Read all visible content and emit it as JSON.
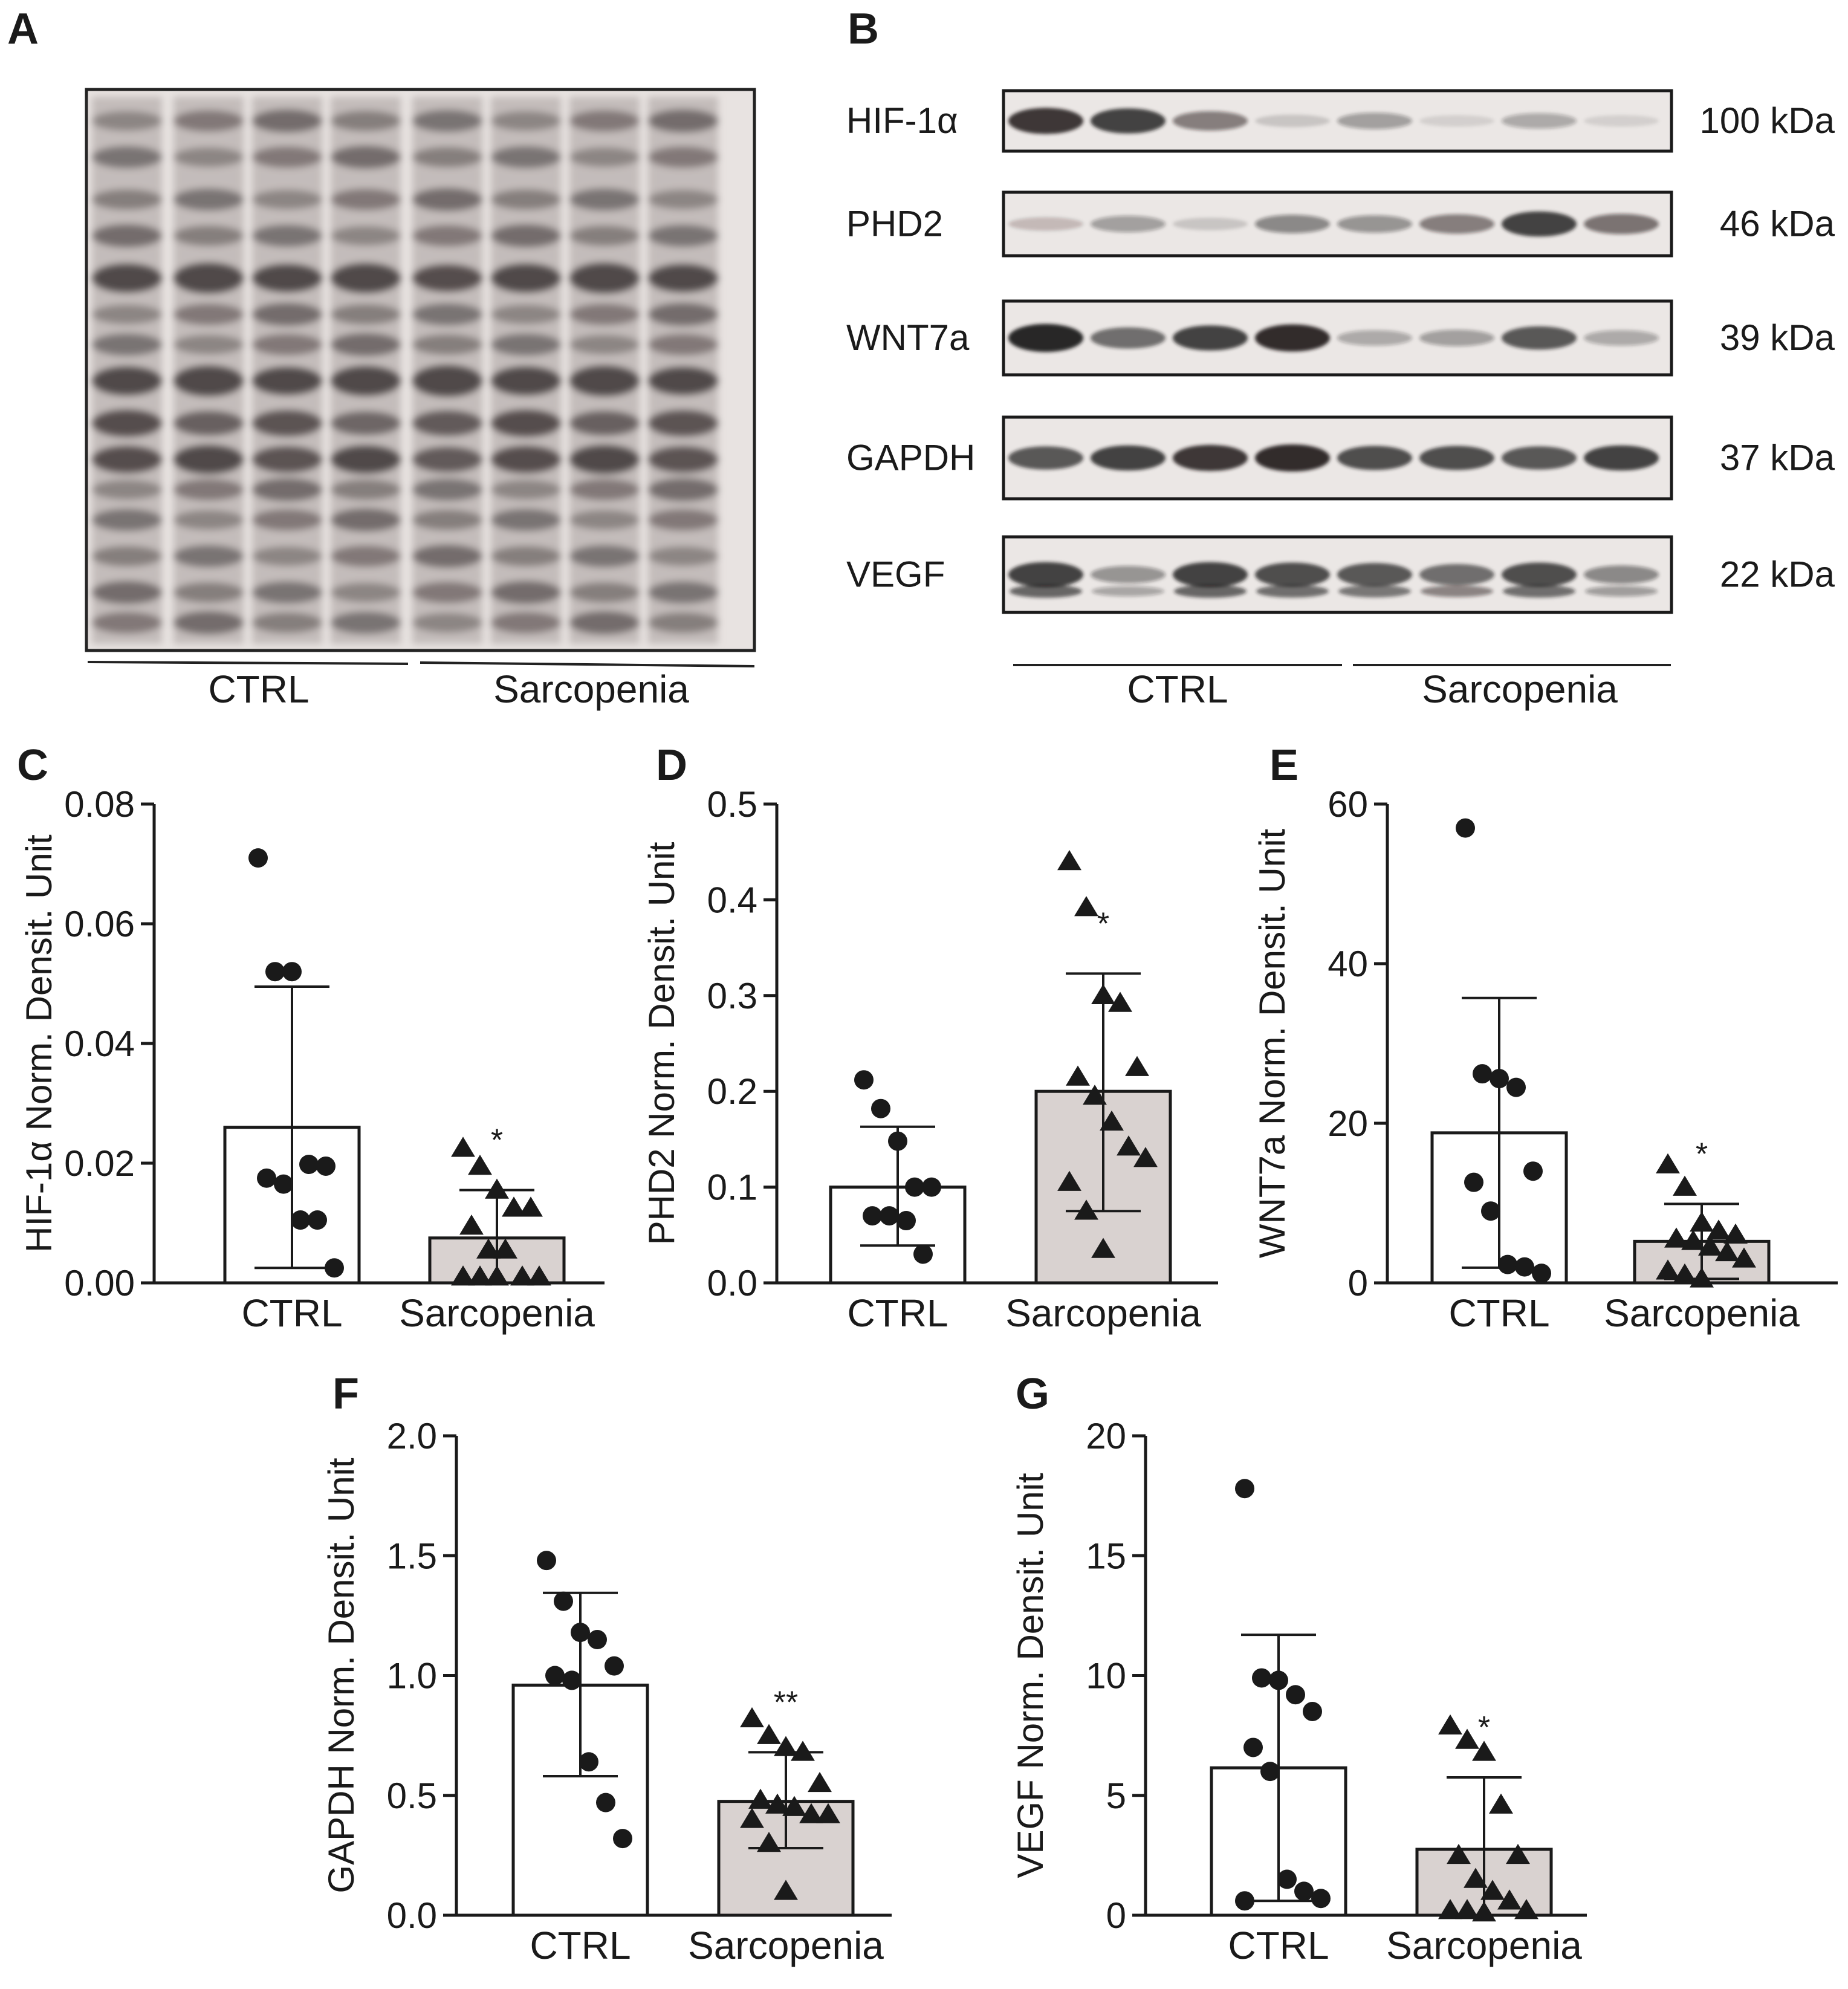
{
  "panels": {
    "A": {
      "letter": "A",
      "group_labels": [
        "CTRL",
        "Sarcopenia"
      ]
    },
    "B": {
      "letter": "B",
      "rows": [
        {
          "protein": "HIF-1α",
          "size": "100 kDa",
          "bands": [
            0.85,
            0.8,
            0.5,
            0.15,
            0.35,
            0.1,
            0.3,
            0.1
          ]
        },
        {
          "protein": "PHD2",
          "size": "46 kDa",
          "bands": [
            0.2,
            0.35,
            0.15,
            0.45,
            0.4,
            0.5,
            0.8,
            0.55
          ]
        },
        {
          "protein": "WNT7a",
          "size": "39 kDa",
          "bands": [
            0.95,
            0.6,
            0.8,
            0.9,
            0.3,
            0.35,
            0.7,
            0.3
          ]
        },
        {
          "protein": "GAPDH",
          "size": "37 kDa",
          "bands": [
            0.7,
            0.8,
            0.85,
            0.9,
            0.75,
            0.75,
            0.7,
            0.8
          ]
        },
        {
          "protein": "VEGF",
          "size": "22 kDa",
          "bands": [
            0.8,
            0.4,
            0.8,
            0.75,
            0.7,
            0.6,
            0.75,
            0.45
          ]
        }
      ],
      "group_labels": [
        "CTRL",
        "Sarcopenia"
      ]
    }
  },
  "colors": {
    "ctrl_bar": "#ffffff",
    "sarc_bar": "#d9d2d0",
    "marker": "#1a1a1a"
  },
  "chart_data": [
    {
      "panel": "C",
      "type": "bar",
      "ylabel": "HIF-1α Norm. Densit. Unit",
      "ylim": [
        0,
        0.08
      ],
      "yticks": [
        0.0,
        0.02,
        0.04,
        0.06,
        0.08
      ],
      "tick_labels": [
        "0.00",
        "0.02",
        "0.04",
        "0.06",
        "0.08"
      ],
      "categories": [
        "CTRL",
        "Sarcopenia"
      ],
      "means": [
        0.026,
        0.0075
      ],
      "sd_upper": [
        0.0495,
        0.0155
      ],
      "sd_lower": [
        0.0025,
        0.0
      ],
      "significance": [
        "",
        "*"
      ],
      "points": [
        [
          0.071,
          0.052,
          0.052,
          0.0198,
          0.0195,
          0.0175,
          0.0165,
          0.0105,
          0.0105,
          0.0025
        ],
        [
          0.0225,
          0.0195,
          0.0155,
          0.0125,
          0.0125,
          0.0095,
          0.0055,
          0.0055,
          0.001,
          0.001,
          0.001,
          0.001,
          0.001
        ]
      ]
    },
    {
      "panel": "D",
      "type": "bar",
      "ylabel": "PHD2 Norm. Densit. Unit",
      "ylim": [
        0,
        0.5
      ],
      "yticks": [
        0.0,
        0.1,
        0.2,
        0.3,
        0.4,
        0.5
      ],
      "tick_labels": [
        "0.0",
        "0.1",
        "0.2",
        "0.3",
        "0.4",
        "0.5"
      ],
      "categories": [
        "CTRL",
        "Sarcopenia"
      ],
      "means": [
        0.1,
        0.2
      ],
      "sd_upper": [
        0.163,
        0.323
      ],
      "sd_lower": [
        0.039,
        0.075
      ],
      "significance": [
        "",
        "*"
      ],
      "points": [
        [
          0.212,
          0.182,
          0.148,
          0.1,
          0.1,
          0.07,
          0.07,
          0.065,
          0.03
        ],
        [
          0.44,
          0.392,
          0.3,
          0.292,
          0.225,
          0.215,
          0.195,
          0.168,
          0.142,
          0.13,
          0.105,
          0.075,
          0.035
        ]
      ]
    },
    {
      "panel": "E",
      "type": "bar",
      "ylabel": "WNT7a Norm. Densit. Unit",
      "ylim": [
        0,
        60
      ],
      "yticks": [
        0,
        20,
        40,
        60
      ],
      "tick_labels": [
        "0",
        "20",
        "40",
        "60"
      ],
      "categories": [
        "CTRL",
        "Sarcopenia"
      ],
      "means": [
        18.8,
        5.2
      ],
      "sd_upper": [
        35.7,
        9.9
      ],
      "sd_lower": [
        1.9,
        0.5
      ],
      "significance": [
        "",
        "*"
      ],
      "points": [
        [
          57.0,
          26.2,
          25.6,
          24.5,
          14.0,
          12.6,
          9.0,
          2.3,
          2.0,
          1.2
        ],
        [
          14.8,
          12.0,
          7.5,
          6.5,
          6.0,
          5.5,
          5.2,
          4.5,
          3.8,
          3.0,
          1.5,
          1.0,
          0.5
        ]
      ]
    },
    {
      "panel": "F",
      "type": "bar",
      "ylabel": "GAPDH Norm. Densit. Unit",
      "ylim": [
        0,
        2.0
      ],
      "yticks": [
        0.0,
        0.5,
        1.0,
        1.5,
        2.0
      ],
      "tick_labels": [
        "0.0",
        "0.5",
        "1.0",
        "1.5",
        "2.0"
      ],
      "categories": [
        "CTRL",
        "Sarcopenia"
      ],
      "means": [
        0.96,
        0.475
      ],
      "sd_upper": [
        1.345,
        0.68
      ],
      "sd_lower": [
        0.58,
        0.28
      ],
      "significance": [
        "",
        "**"
      ],
      "points": [
        [
          1.48,
          1.31,
          1.18,
          1.15,
          1.04,
          1.0,
          0.98,
          0.64,
          0.47,
          0.32
        ],
        [
          0.82,
          0.75,
          0.7,
          0.68,
          0.55,
          0.48,
          0.46,
          0.45,
          0.42,
          0.42,
          0.4,
          0.3,
          0.1
        ]
      ]
    },
    {
      "panel": "G",
      "type": "bar",
      "ylabel": "VEGF Norm. Densit. Unit",
      "ylim": [
        0,
        20
      ],
      "yticks": [
        0,
        5,
        10,
        15,
        20
      ],
      "tick_labels": [
        "0",
        "5",
        "10",
        "15",
        "20"
      ],
      "categories": [
        "CTRL",
        "Sarcopenia"
      ],
      "means": [
        6.15,
        2.75
      ],
      "sd_upper": [
        11.7,
        5.75
      ],
      "sd_lower": [
        0.6,
        0.0
      ],
      "significance": [
        "",
        "*"
      ],
      "points": [
        [
          17.8,
          9.9,
          9.8,
          9.2,
          8.5,
          7.0,
          6.0,
          1.5,
          1.0,
          0.7,
          0.6
        ],
        [
          7.9,
          7.3,
          6.8,
          4.6,
          2.5,
          2.5,
          1.5,
          1.0,
          0.6,
          0.2,
          0.2,
          0.2,
          0.1
        ]
      ]
    }
  ]
}
